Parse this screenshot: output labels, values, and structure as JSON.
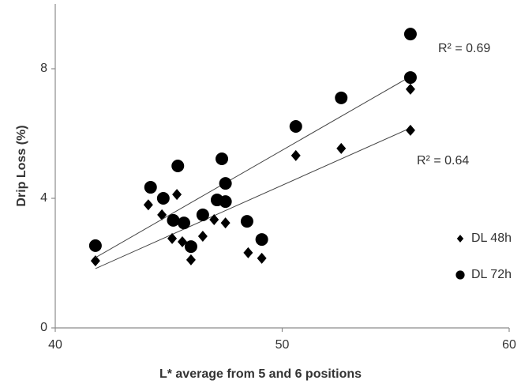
{
  "chart_data": {
    "type": "scatter",
    "x_label": "L* average from 5 and 6 positions",
    "y_label": "Drip Loss (%)",
    "xlim": [
      40,
      60
    ],
    "xticks": [
      40,
      50,
      60
    ],
    "ylim": [
      0,
      10
    ],
    "yticks": [
      0,
      4,
      8
    ],
    "grid": false,
    "legend": "right",
    "series": [
      {
        "name": "DL 48h",
        "color": "#000000",
        "marker": "diamond",
        "x": [
          41.77,
          44.1,
          44.7,
          45.36,
          45.15,
          45.6,
          45.98,
          46.5,
          47.0,
          47.5,
          48.5,
          49.1,
          50.6,
          52.6,
          55.65,
          55.65
        ],
        "values": [
          2.07,
          3.8,
          3.49,
          4.12,
          2.76,
          2.66,
          2.1,
          2.83,
          3.34,
          3.24,
          2.32,
          2.15,
          5.32,
          5.54,
          6.1,
          7.37
        ],
        "trend": {
          "x": [
            41.77,
            55.65
          ],
          "y": [
            1.83,
            6.17
          ]
        },
        "r2_label": "R² = 0.64"
      },
      {
        "name": "DL 72h",
        "color": "#000000",
        "marker": "circle",
        "x": [
          41.77,
          44.2,
          44.76,
          45.4,
          45.2,
          45.67,
          45.98,
          46.5,
          47.13,
          47.34,
          47.5,
          47.5,
          48.45,
          49.1,
          50.6,
          52.6,
          55.65,
          55.65
        ],
        "values": [
          2.54,
          4.34,
          4.0,
          5.0,
          3.32,
          3.24,
          2.51,
          3.49,
          3.95,
          5.22,
          4.46,
          3.9,
          3.29,
          2.73,
          6.22,
          7.1,
          9.07,
          7.73
        ],
        "trend": {
          "x": [
            41.77,
            55.65
          ],
          "y": [
            2.17,
            7.76
          ]
        },
        "r2_label": "R² = 0.69"
      }
    ]
  }
}
